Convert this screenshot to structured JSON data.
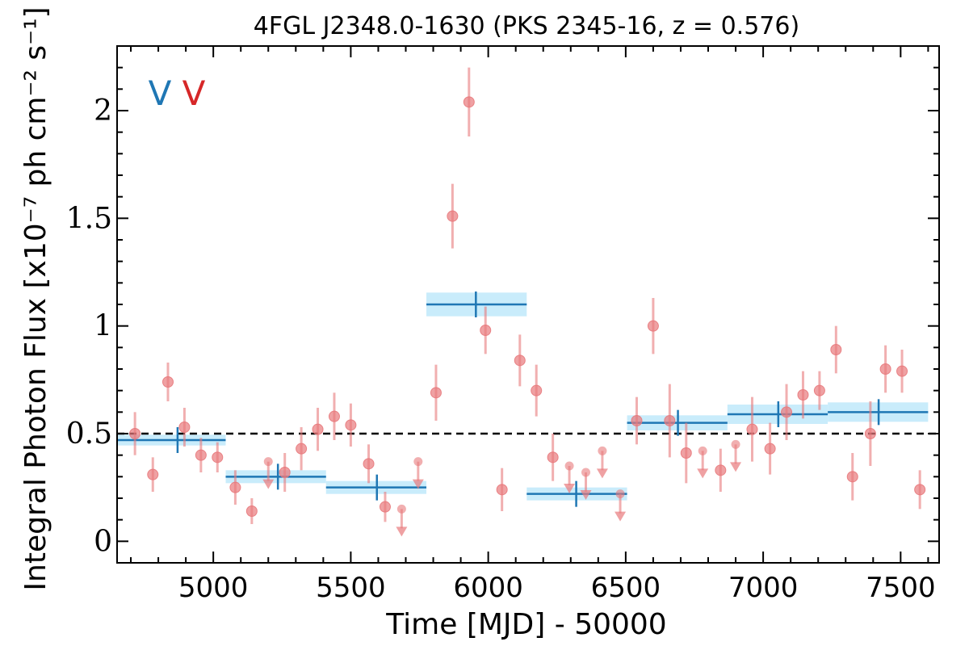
{
  "chart_data": {
    "type": "scatter",
    "title": "4FGL J2348.0-1630 (PKS 2345-16, z = 0.576)",
    "xlabel": "Time [MJD] - 50000",
    "ylabel": "Integral Photon Flux [x10⁻⁷ ph cm⁻² s⁻¹]",
    "xlim": [
      4650,
      7640
    ],
    "ylim": [
      -0.1,
      2.3
    ],
    "xticks": [
      5000,
      5500,
      6000,
      6500,
      7000,
      7500
    ],
    "yticks": [
      0,
      0.5,
      1,
      1.5,
      2
    ],
    "xtick_labels": [
      "5000",
      "5500",
      "6000",
      "6500",
      "7000",
      "7500"
    ],
    "ytick_labels": [
      "0",
      "0.5",
      "1",
      "1.5",
      "2"
    ],
    "reference_line": 0.5,
    "legend": [
      {
        "label": "V",
        "color": "#1f77b4"
      },
      {
        "label": "V",
        "color": "#d62728"
      }
    ],
    "colors": {
      "points": "#e8797c",
      "binned_line": "#1f77b4",
      "binned_band": "#c9ecfb",
      "reference": "#000000"
    },
    "series": [
      {
        "type": "errorbar",
        "points": [
          {
            "x": 4715,
            "y": 0.5,
            "err": 0.1
          },
          {
            "x": 4780,
            "y": 0.31,
            "err": 0.08
          },
          {
            "x": 4835,
            "y": 0.74,
            "err": 0.09
          },
          {
            "x": 4895,
            "y": 0.53,
            "err": 0.09
          },
          {
            "x": 4955,
            "y": 0.4,
            "err": 0.08
          },
          {
            "x": 5015,
            "y": 0.39,
            "err": 0.07
          },
          {
            "x": 5080,
            "y": 0.25,
            "err": 0.08
          },
          {
            "x": 5140,
            "y": 0.14,
            "err": 0.06
          },
          {
            "x": 5260,
            "y": 0.32,
            "err": 0.09
          },
          {
            "x": 5320,
            "y": 0.43,
            "err": 0.1
          },
          {
            "x": 5380,
            "y": 0.52,
            "err": 0.1
          },
          {
            "x": 5440,
            "y": 0.58,
            "err": 0.11
          },
          {
            "x": 5500,
            "y": 0.54,
            "err": 0.1
          },
          {
            "x": 5565,
            "y": 0.36,
            "err": 0.09
          },
          {
            "x": 5625,
            "y": 0.16,
            "err": 0.07
          },
          {
            "x": 5810,
            "y": 0.69,
            "err": 0.13
          },
          {
            "x": 5870,
            "y": 1.51,
            "err": 0.15
          },
          {
            "x": 5930,
            "y": 2.04,
            "err": 0.16
          },
          {
            "x": 5990,
            "y": 0.98,
            "err": 0.11
          },
          {
            "x": 6050,
            "y": 0.24,
            "err": 0.1
          },
          {
            "x": 6115,
            "y": 0.84,
            "err": 0.12
          },
          {
            "x": 6175,
            "y": 0.7,
            "err": 0.12
          },
          {
            "x": 6235,
            "y": 0.39,
            "err": 0.11
          },
          {
            "x": 6540,
            "y": 0.56,
            "err": 0.11
          },
          {
            "x": 6600,
            "y": 1.0,
            "err": 0.13
          },
          {
            "x": 6660,
            "y": 0.56,
            "err": 0.17
          },
          {
            "x": 6720,
            "y": 0.41,
            "err": 0.14
          },
          {
            "x": 6845,
            "y": 0.33,
            "err": 0.1
          },
          {
            "x": 6960,
            "y": 0.52,
            "err": 0.15
          },
          {
            "x": 7025,
            "y": 0.43,
            "err": 0.12
          },
          {
            "x": 7085,
            "y": 0.6,
            "err": 0.13
          },
          {
            "x": 7145,
            "y": 0.68,
            "err": 0.11
          },
          {
            "x": 7205,
            "y": 0.7,
            "err": 0.09
          },
          {
            "x": 7265,
            "y": 0.89,
            "err": 0.11
          },
          {
            "x": 7325,
            "y": 0.3,
            "err": 0.11
          },
          {
            "x": 7390,
            "y": 0.5,
            "err": 0.15
          },
          {
            "x": 7445,
            "y": 0.8,
            "err": 0.11
          },
          {
            "x": 7505,
            "y": 0.79,
            "err": 0.1
          },
          {
            "x": 7570,
            "y": 0.24,
            "err": 0.09
          }
        ]
      },
      {
        "type": "upper_limit",
        "points": [
          {
            "x": 5200,
            "y": 0.37
          },
          {
            "x": 5685,
            "y": 0.15
          },
          {
            "x": 5745,
            "y": 0.37
          },
          {
            "x": 6295,
            "y": 0.35
          },
          {
            "x": 6355,
            "y": 0.32
          },
          {
            "x": 6415,
            "y": 0.42
          },
          {
            "x": 6480,
            "y": 0.22
          },
          {
            "x": 6780,
            "y": 0.42
          },
          {
            "x": 6900,
            "y": 0.45
          }
        ]
      },
      {
        "type": "binned",
        "bins": [
          {
            "x0": 4650,
            "x1": 5045,
            "xc": 4870,
            "y": 0.47,
            "err": 0.025
          },
          {
            "x0": 5045,
            "x1": 5410,
            "xc": 5235,
            "y": 0.3,
            "err": 0.03
          },
          {
            "x0": 5410,
            "x1": 5775,
            "xc": 5595,
            "y": 0.25,
            "err": 0.03
          },
          {
            "x0": 5775,
            "x1": 6140,
            "xc": 5955,
            "y": 1.1,
            "err": 0.055
          },
          {
            "x0": 6140,
            "x1": 6505,
            "xc": 6320,
            "y": 0.22,
            "err": 0.03
          },
          {
            "x0": 6505,
            "x1": 6870,
            "xc": 6690,
            "y": 0.55,
            "err": 0.035
          },
          {
            "x0": 6870,
            "x1": 7235,
            "xc": 7055,
            "y": 0.59,
            "err": 0.045
          },
          {
            "x0": 7235,
            "x1": 7600,
            "xc": 7420,
            "y": 0.6,
            "err": 0.045
          }
        ]
      }
    ]
  }
}
